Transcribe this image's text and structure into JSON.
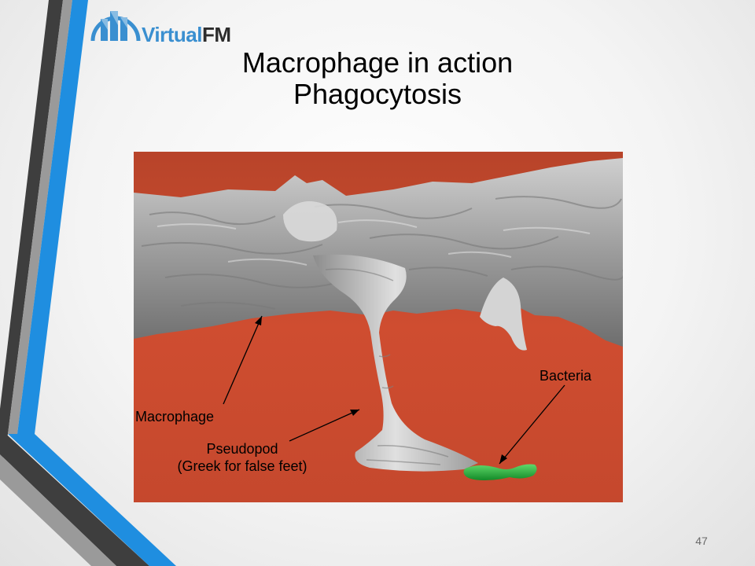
{
  "brand": {
    "logo_word_primary": "Virtual",
    "logo_word_secondary": "FM",
    "accent_color": "#1f8ee0",
    "dark_color": "#404040"
  },
  "slide": {
    "title_line1": "Macrophage in action",
    "title_line2": "Phagocytosis",
    "page_number": "47"
  },
  "figure": {
    "labels": {
      "bacteria": "Bacteria",
      "macrophage": "Macrophage",
      "pseudopod_line1": "Pseudopod",
      "pseudopod_line2": "(Greek for false feet)"
    },
    "colors": {
      "background": "#c8492c",
      "cell": "#a8a8a8",
      "bacteria": "#22a23a"
    }
  }
}
